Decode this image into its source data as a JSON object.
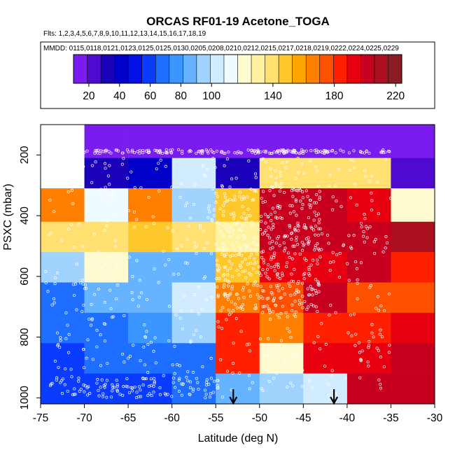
{
  "chart_data": {
    "type": "heatmap",
    "title": "ORCAS RF01-19 Acetone_TOGA",
    "flights_text": "Flts: 1,2,3,4,5,6,7,8,9,10,11,12,13,14,15,16,17,18,19",
    "dates_text": "MMDD: 0115,0118,0121,0123,0125,0125,0130,0205,0208,0210,0212,0215,0217,0218,0219,0222,0224,0225,0229",
    "xlabel": "Latitude (deg N)",
    "ylabel": "PSXC (mbar)",
    "xlim": [
      -75,
      -30
    ],
    "ylim": [
      100,
      1020
    ],
    "x_ticks": [
      -75,
      -70,
      -65,
      -60,
      -55,
      -50,
      -45,
      -40,
      -35,
      -30
    ],
    "y_ticks": [
      200,
      400,
      600,
      800,
      1000
    ],
    "colorbar": {
      "range": [
        10,
        224
      ],
      "ticks": [
        20,
        40,
        60,
        80,
        100,
        140,
        180,
        220
      ],
      "colors": [
        "#7a1bf0",
        "#4f0ad0",
        "#1a02ba",
        "#0000c8",
        "#0010e6",
        "#0a3cff",
        "#1e6eff",
        "#3c96ff",
        "#66b4ff",
        "#a0d4ff",
        "#d2ecff",
        "#f0fbff",
        "#fffbd0",
        "#fff2a0",
        "#ffe070",
        "#ffc82a",
        "#ffa500",
        "#ff7f00",
        "#ff5000",
        "#ff2000",
        "#e60010",
        "#c80020",
        "#aa1020",
        "#8c1c24"
      ]
    },
    "lat_bins": [
      -75,
      -70,
      -65,
      -60,
      -55,
      -50,
      -45,
      -40,
      -35
    ],
    "pressure_bins": [
      100,
      210,
      310,
      420,
      520,
      620,
      720,
      820,
      920,
      1020
    ],
    "cells": [
      [
        null,
        14,
        14,
        12,
        14,
        10,
        12,
        14,
        12
      ],
      [
        null,
        32,
        38,
        105,
        35,
        140,
        140,
        140,
        24
      ],
      [
        168,
        112,
        162,
        96,
        150,
        205,
        205,
        195,
        120
      ],
      [
        142,
        142,
        145,
        142,
        132,
        205,
        205,
        205,
        210
      ],
      [
        95,
        125,
        88,
        88,
        145,
        195,
        195,
        205,
        182
      ],
      [
        70,
        85,
        84,
        104,
        170,
        175,
        200,
        172,
        175
      ],
      [
        68,
        70,
        74,
        98,
        180,
        170,
        180,
        185,
        195
      ],
      [
        62,
        65,
        64,
        68,
        180,
        125,
        190,
        190,
        200
      ],
      [
        60,
        63,
        63,
        64,
        90,
        98,
        100,
        200,
        205
      ]
    ],
    "arrows": [
      {
        "lat": -53,
        "label": "arrow"
      },
      {
        "lat": -41.5,
        "label": "arrow"
      }
    ]
  }
}
